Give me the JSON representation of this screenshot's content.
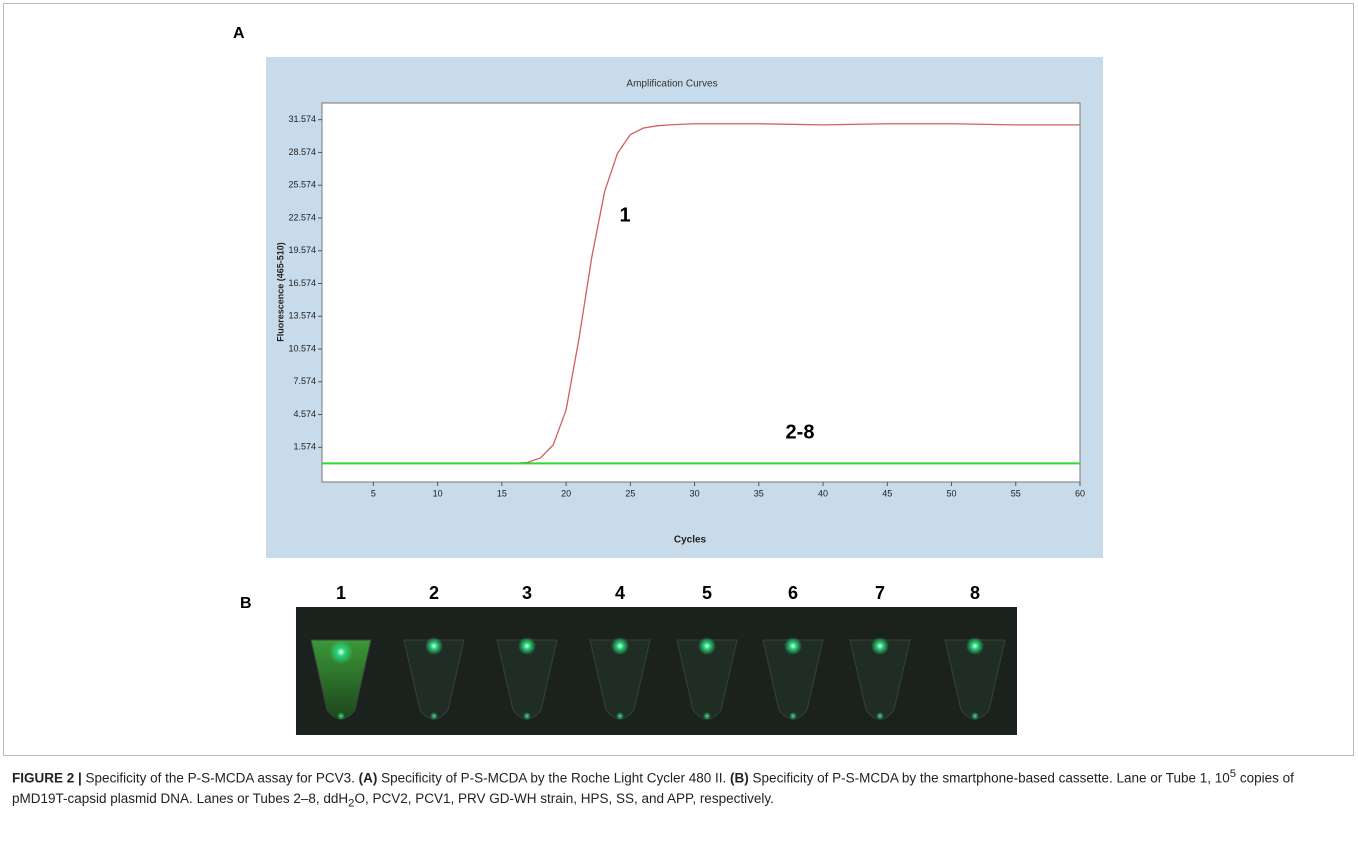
{
  "panel_labels": [
    "A",
    "B"
  ],
  "chart_data": {
    "type": "line",
    "title": "Amplification Curves",
    "x_label": "Cycles",
    "y_label": "Fluorescence (465-510)",
    "x": [
      1,
      5,
      10,
      15,
      16,
      17,
      18,
      19,
      20,
      21,
      22,
      23,
      24,
      25,
      26,
      27,
      28,
      30,
      35,
      40,
      45,
      50,
      55,
      60
    ],
    "series": [
      {
        "name": "1",
        "color": "#d0605c",
        "values": [
          0.1,
          0.1,
          0.1,
          0.1,
          0.1,
          0.2,
          0.6,
          1.8,
          5.0,
          11.5,
          19.0,
          25.0,
          28.5,
          30.2,
          30.8,
          31.0,
          31.1,
          31.2,
          31.2,
          31.1,
          31.2,
          31.2,
          31.1,
          31.1
        ]
      },
      {
        "name": "2-8",
        "color": "#2edb2e",
        "values": [
          0.1,
          0.1,
          0.1,
          0.1,
          0.1,
          0.1,
          0.1,
          0.1,
          0.1,
          0.1,
          0.1,
          0.1,
          0.1,
          0.1,
          0.1,
          0.1,
          0.1,
          0.1,
          0.1,
          0.1,
          0.1,
          0.1,
          0.1,
          0.1
        ]
      }
    ],
    "xlim": [
      1,
      60
    ],
    "xticks": [
      5,
      10,
      15,
      20,
      25,
      30,
      35,
      40,
      45,
      50,
      55,
      60
    ],
    "ylim": [
      -1.6,
      33.1
    ],
    "yticks": [
      1.574,
      4.574,
      7.574,
      10.574,
      13.574,
      16.574,
      19.574,
      22.574,
      25.574,
      28.574,
      31.574
    ],
    "grid": false
  },
  "gel_lanes": [
    "1",
    "2",
    "3",
    "4",
    "5",
    "6",
    "7",
    "8"
  ],
  "caption": {
    "parts": [
      "FIGURE 2 |",
      " Specificity of the P-S-MCDA assay for PCV3. ",
      "(A)",
      " Specificity of P-S-MCDA by the Roche Light Cycler 480 II. ",
      "(B)",
      " Specificity of P-S-MCDA by the smartphone-based cassette. Lane or Tube 1, 10",
      "5",
      " copies of pMD19T-capsid plasmid DNA. Lanes or Tubes 2–8, ddH",
      "2",
      "O, PCV2, PCV1, PRV GD-WH strain, HPS, SS, and APP, respectively."
    ]
  }
}
